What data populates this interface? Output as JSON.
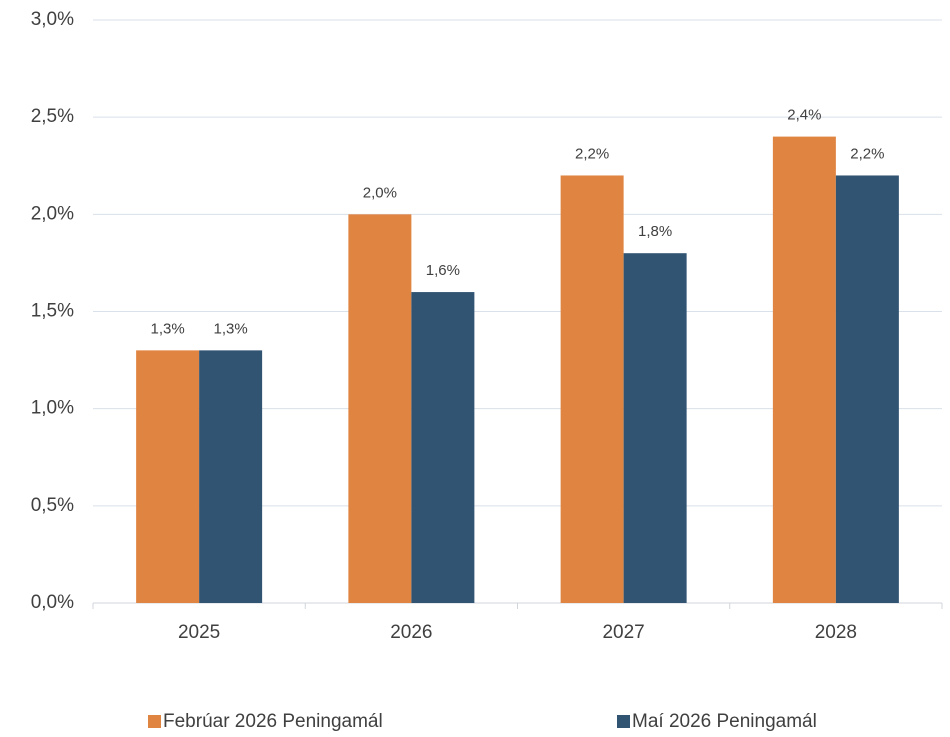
{
  "chart_data": {
    "type": "bar",
    "categories": [
      "2025",
      "2026",
      "2027",
      "2028"
    ],
    "series": [
      {
        "name": "Febrúar 2026 Peningamál",
        "color": "#e08442",
        "values": [
          1.3,
          2.0,
          2.2,
          2.4
        ],
        "value_labels": [
          "1,3%",
          "2,0%",
          "2,2%",
          "2,4%"
        ]
      },
      {
        "name": "Maí 2026 Peningamál",
        "color": "#325473",
        "values": [
          1.3,
          1.6,
          1.8,
          2.2
        ],
        "value_labels": [
          "1,3%",
          "1,6%",
          "1,8%",
          "2,2%"
        ]
      }
    ],
    "ylim": [
      0,
      3.0
    ],
    "yticks": [
      {
        "value": 0,
        "label": "0,0%"
      },
      {
        "value": 0.5,
        "label": "0,5%"
      },
      {
        "value": 1.0,
        "label": "1,0%"
      },
      {
        "value": 1.5,
        "label": "1,5%"
      },
      {
        "value": 2.0,
        "label": "2,0%"
      },
      {
        "value": 2.5,
        "label": "2,5%"
      },
      {
        "value": 3.0,
        "label": "3,0%"
      }
    ],
    "grid": true,
    "legend": "bottom"
  }
}
